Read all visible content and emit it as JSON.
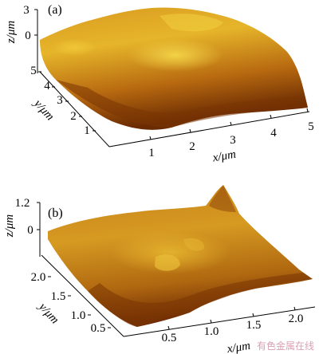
{
  "chart_data": [
    {
      "type": "surface",
      "panel_label": "(a)",
      "xlabel": "x/μm",
      "ylabel": "y/μm",
      "zlabel": "z/μm",
      "x_ticks": [
        "1",
        "2",
        "3",
        "4",
        "5"
      ],
      "y_ticks": [
        "1",
        "2",
        "3",
        "4",
        "5"
      ],
      "z_ticks": [
        "3",
        "0"
      ],
      "xlim": [
        0,
        5
      ],
      "ylim": [
        0,
        5
      ],
      "colormap": [
        "#5a1e00",
        "#8a3d05",
        "#c07010",
        "#e0a020",
        "#f2d040"
      ]
    },
    {
      "type": "surface",
      "panel_label": "(b)",
      "xlabel": "x/μm",
      "ylabel": "y/μm",
      "zlabel": "z/μm",
      "x_ticks": [
        "0.5",
        "1.0",
        "1.5",
        "2.0"
      ],
      "y_ticks": [
        "0.5",
        "1.0",
        "1.5",
        "2.0"
      ],
      "z_ticks": [
        "1.2",
        "0"
      ],
      "xlim": [
        0,
        2.4
      ],
      "ylim": [
        0,
        2.4
      ],
      "colormap": [
        "#5a1e00",
        "#8a3d05",
        "#c07010",
        "#e0a020",
        "#f2d040"
      ]
    }
  ],
  "watermark": "有色金属在线"
}
